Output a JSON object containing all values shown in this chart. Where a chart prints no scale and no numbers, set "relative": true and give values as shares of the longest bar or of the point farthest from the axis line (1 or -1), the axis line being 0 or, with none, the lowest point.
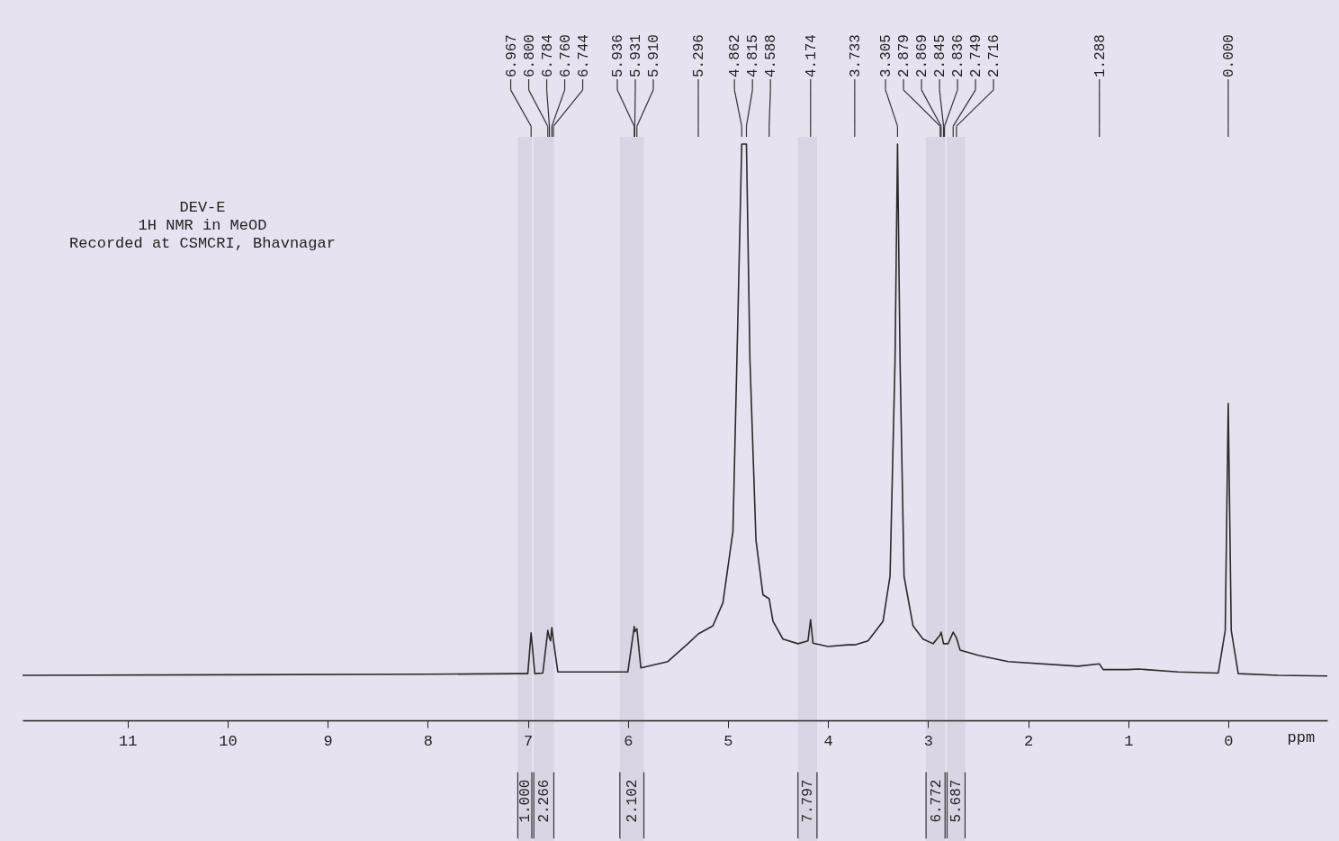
{
  "chart_data": {
    "type": "line",
    "relative": true,
    "xlabel": "ppm",
    "xlim": [
      12.05,
      -0.99
    ],
    "xticks": [
      11,
      10,
      9,
      8,
      7,
      6,
      5,
      4,
      3,
      2,
      1,
      0
    ],
    "grid": false,
    "marker": "none",
    "line_style": "solid",
    "x": [
      12.05,
      8,
      7.1,
      7.0,
      6.967,
      6.93,
      6.85,
      6.8,
      6.784,
      6.772,
      6.76,
      6.744,
      6.7,
      6.0,
      5.936,
      5.931,
      5.91,
      5.87,
      5.6,
      5.4,
      5.296,
      5.15,
      5.05,
      4.95,
      4.9,
      4.862,
      4.815,
      4.78,
      4.72,
      4.65,
      4.588,
      4.55,
      4.45,
      4.3,
      4.2,
      4.174,
      4.15,
      4.0,
      3.8,
      3.733,
      3.6,
      3.45,
      3.38,
      3.33,
      3.305,
      3.28,
      3.24,
      3.15,
      3.05,
      2.95,
      2.879,
      2.869,
      2.845,
      2.836,
      2.8,
      2.749,
      2.716,
      2.68,
      2.5,
      2.2,
      1.5,
      1.288,
      1.25,
      1.0,
      0.9,
      0.5,
      0.1,
      0.03,
      0.0,
      -0.03,
      -0.1,
      -0.5,
      -0.99
    ],
    "series": [
      {
        "color": "#2a2a2a",
        "values": [
          0.078,
          0.08,
          0.081,
          0.081,
          0.152,
          0.081,
          0.082,
          0.156,
          0.143,
          0.138,
          0.161,
          0.138,
          0.084,
          0.084,
          0.163,
          0.154,
          0.159,
          0.091,
          0.102,
          0.133,
          0.15,
          0.164,
          0.204,
          0.328,
          0.703,
          1,
          1,
          0.625,
          0.313,
          0.218,
          0.211,
          0.172,
          0.141,
          0.133,
          0.138,
          0.175,
          0.134,
          0.128,
          0.131,
          0.131,
          0.138,
          0.172,
          0.25,
          0.625,
          1,
          0.625,
          0.25,
          0.164,
          0.141,
          0.133,
          0.148,
          0.153,
          0.133,
          0.133,
          0.133,
          0.153,
          0.143,
          0.122,
          0.113,
          0.102,
          0.094,
          0.098,
          0.088,
          0.088,
          0.089,
          0.084,
          0.082,
          0.156,
          0.55,
          0.156,
          0.081,
          0.078,
          0.077
        ]
      }
    ],
    "bands": [
      {
        "axis": "x",
        "from": 7.1,
        "to": 6.96,
        "label": "1.000"
      },
      {
        "axis": "x",
        "from": 6.94,
        "to": 6.74,
        "label": "2.266"
      },
      {
        "axis": "x",
        "from": 6.08,
        "to": 5.84,
        "label": "2.102"
      },
      {
        "axis": "x",
        "from": 4.3,
        "to": 4.11,
        "label": "7.797"
      },
      {
        "axis": "x",
        "from": 3.02,
        "to": 2.83,
        "label": "6.772"
      },
      {
        "axis": "x",
        "from": 2.81,
        "to": 2.63,
        "label": "5.687"
      }
    ],
    "annotations": [
      "DEV-E",
      "1H NMR in MeOD",
      "Recorded at CSMCRI, Bhavnagar",
      {
        "text": "6.967",
        "x": 6.967
      },
      {
        "text": "6.800",
        "x": 6.8
      },
      {
        "text": "6.784",
        "x": 6.784
      },
      {
        "text": "6.760",
        "x": 6.76
      },
      {
        "text": "6.744",
        "x": 6.744
      },
      {
        "text": "5.936",
        "x": 5.936
      },
      {
        "text": "5.931",
        "x": 5.931
      },
      {
        "text": "5.910",
        "x": 5.91
      },
      {
        "text": "5.296",
        "x": 5.296
      },
      {
        "text": "4.862",
        "x": 4.862
      },
      {
        "text": "4.815",
        "x": 4.815
      },
      {
        "text": "4.588",
        "x": 4.588
      },
      {
        "text": "4.174",
        "x": 4.174
      },
      {
        "text": "3.733",
        "x": 3.733
      },
      {
        "text": "3.305",
        "x": 3.305
      },
      {
        "text": "2.879",
        "x": 2.879
      },
      {
        "text": "2.869",
        "x": 2.869
      },
      {
        "text": "2.845",
        "x": 2.845
      },
      {
        "text": "2.836",
        "x": 2.836
      },
      {
        "text": "2.749",
        "x": 2.749
      },
      {
        "text": "2.716",
        "x": 2.716
      },
      {
        "text": "1.288",
        "x": 1.288
      },
      {
        "text": "0.000",
        "x": 0.0
      }
    ]
  }
}
